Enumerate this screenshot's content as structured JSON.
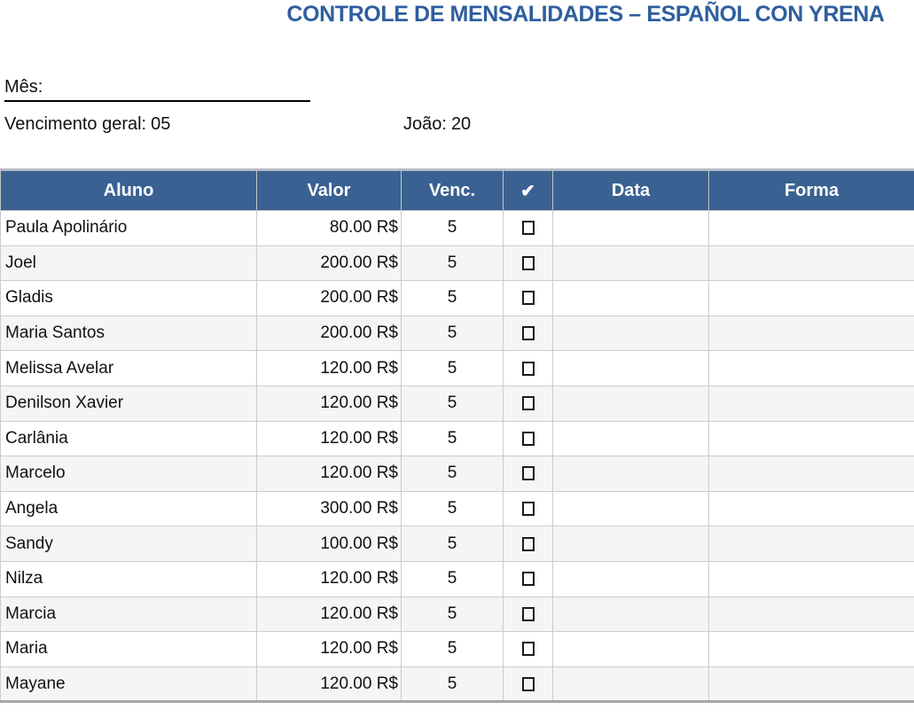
{
  "title": "CONTROLE DE MENSALIDADES – ESPAÑOL CON YRENA",
  "fields": {
    "month_label": "Mês:",
    "month_value": "",
    "general_due_label": "Vencimento geral:",
    "general_due_value": "05",
    "joao_label": "João:",
    "joao_value": "20"
  },
  "table": {
    "columns": [
      "Aluno",
      "Valor",
      "Venc.",
      "✔",
      "Data",
      "Forma"
    ],
    "column_keys": [
      "aluno",
      "valor",
      "venc",
      "check",
      "data",
      "forma"
    ],
    "rows": [
      {
        "aluno": "Paula Apolinário",
        "valor": "80.00 R$",
        "venc": "5",
        "checked": false,
        "data": "",
        "forma": ""
      },
      {
        "aluno": "Joel",
        "valor": "200.00 R$",
        "venc": "5",
        "checked": false,
        "data": "",
        "forma": ""
      },
      {
        "aluno": "Gladis",
        "valor": "200.00 R$",
        "venc": "5",
        "checked": false,
        "data": "",
        "forma": ""
      },
      {
        "aluno": "Maria Santos",
        "valor": "200.00 R$",
        "venc": "5",
        "checked": false,
        "data": "",
        "forma": ""
      },
      {
        "aluno": "Melissa Avelar",
        "valor": "120.00 R$",
        "venc": "5",
        "checked": false,
        "data": "",
        "forma": ""
      },
      {
        "aluno": "Denilson Xavier",
        "valor": "120.00 R$",
        "venc": "5",
        "checked": false,
        "data": "",
        "forma": ""
      },
      {
        "aluno": "Carlânia",
        "valor": "120.00 R$",
        "venc": "5",
        "checked": false,
        "data": "",
        "forma": ""
      },
      {
        "aluno": "Marcelo",
        "valor": "120.00 R$",
        "venc": "5",
        "checked": false,
        "data": "",
        "forma": ""
      },
      {
        "aluno": "Angela",
        "valor": "300.00 R$",
        "venc": "5",
        "checked": false,
        "data": "",
        "forma": ""
      },
      {
        "aluno": "Sandy",
        "valor": "100.00 R$",
        "venc": "5",
        "checked": false,
        "data": "",
        "forma": ""
      },
      {
        "aluno": "Nilza",
        "valor": "120.00 R$",
        "venc": "5",
        "checked": false,
        "data": "",
        "forma": ""
      },
      {
        "aluno": "Marcia",
        "valor": "120.00 R$",
        "venc": "5",
        "checked": false,
        "data": "",
        "forma": ""
      },
      {
        "aluno": "Maria",
        "valor": "120.00 R$",
        "venc": "5",
        "checked": false,
        "data": "",
        "forma": ""
      },
      {
        "aluno": "Mayane",
        "valor": "120.00 R$",
        "venc": "5",
        "checked": false,
        "data": "",
        "forma": ""
      }
    ]
  },
  "colors": {
    "title_color": "#2E5E9E",
    "header_bg": "#3A6191",
    "row_alt": "#F5F5F5"
  }
}
